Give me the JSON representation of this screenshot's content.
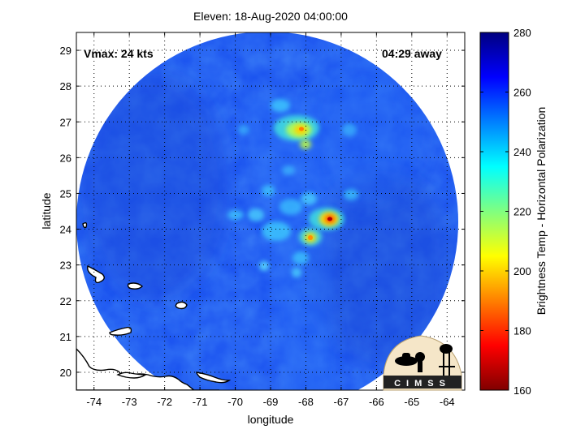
{
  "title": "Eleven: 18-Aug-2020 04:00:00",
  "xlabel": "longitude",
  "ylabel": "latitude",
  "vmax_text": "Vmax: 24 kts",
  "away_text": "04:29 away",
  "logo_text": "CIMSS",
  "colorbar": {
    "label": "Brightness Temp - Horizontal Polarization",
    "min": 160,
    "max": 280,
    "ticks": [
      "160",
      "180",
      "200",
      "220",
      "240",
      "260",
      "280"
    ],
    "colormap": "jet"
  },
  "map": {
    "lon_range": [
      -74.5,
      -63.5
    ],
    "lat_range": [
      19.5,
      29.5
    ],
    "lon_ticks": [
      "-74",
      "-73",
      "-72",
      "-71",
      "-70",
      "-69",
      "-68",
      "-67",
      "-66",
      "-65",
      "-64"
    ],
    "lat_ticks": [
      "20",
      "21",
      "22",
      "23",
      "24",
      "25",
      "26",
      "27",
      "28",
      "29"
    ],
    "grid": "dotted",
    "swath_center": [
      -68.8,
      23.8
    ],
    "background_temp": 262,
    "features": [
      {
        "name": "northern-convection",
        "lon": -68.3,
        "lat": 26.8,
        "min_temp": 195
      },
      {
        "name": "central-convection",
        "lon": -67.4,
        "lat": 24.2,
        "min_temp": 178
      },
      {
        "name": "secondary-convection",
        "lon": -68.0,
        "lat": 23.7,
        "min_temp": 205
      },
      {
        "name": "scattered-convection",
        "lon": -68.5,
        "lat": 24.5,
        "min_temp": 235
      }
    ]
  }
}
